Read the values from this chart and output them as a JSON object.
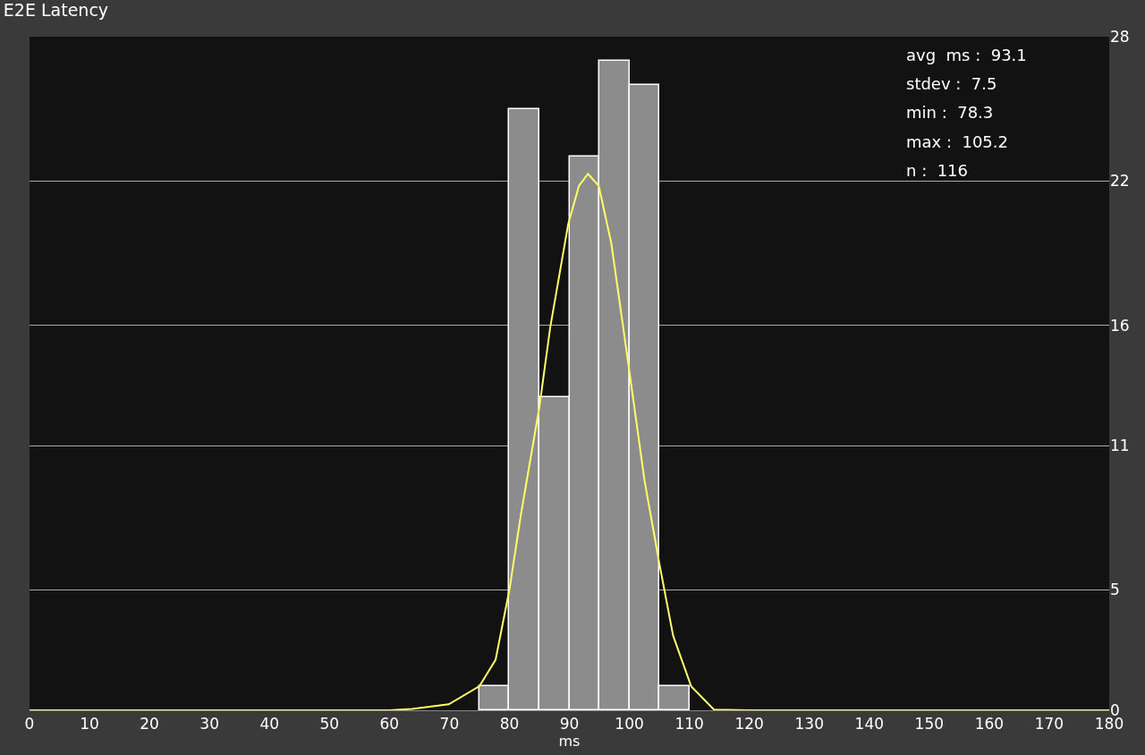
{
  "chart_data": {
    "type": "histogram",
    "title": "E2E Latency",
    "xlabel": "ms",
    "bins": [
      75,
      80,
      85,
      90,
      95,
      100,
      105,
      110
    ],
    "values": [
      1,
      25,
      13,
      23,
      27,
      26,
      1
    ],
    "color": "#8c8c8c",
    "series": [
      {
        "type": "line",
        "color": "#ffff66",
        "x": [
          0,
          60,
          63.8,
          69.9,
          75,
          77.7,
          80,
          81.9,
          85,
          86.8,
          89.8,
          91.6,
          93.1,
          94.9,
          97,
          100,
          102.5,
          105,
          107.3,
          110.3,
          114.1,
          120,
          180
        ],
        "values": [
          0,
          0,
          0.06,
          0.25,
          1.0,
          2.1,
          5.0,
          8.1,
          12.6,
          15.9,
          20.2,
          21.8,
          22.3,
          21.8,
          19.4,
          14.1,
          9.6,
          6.1,
          3.1,
          1.0,
          0.03,
          0,
          0
        ]
      }
    ],
    "annotations": [
      "avg  ms :  93.1",
      "stdev :  7.5",
      "min :  78.3",
      "max :  105.2",
      "n :  116"
    ],
    "xlim": [
      0,
      180
    ],
    "xticks": [
      0,
      10,
      20,
      30,
      40,
      50,
      60,
      70,
      80,
      90,
      100,
      110,
      120,
      130,
      140,
      150,
      160,
      170,
      180
    ],
    "ylim": [
      0,
      28
    ],
    "yticks": [
      0,
      5,
      11,
      16,
      22,
      28
    ],
    "grid": "y"
  }
}
